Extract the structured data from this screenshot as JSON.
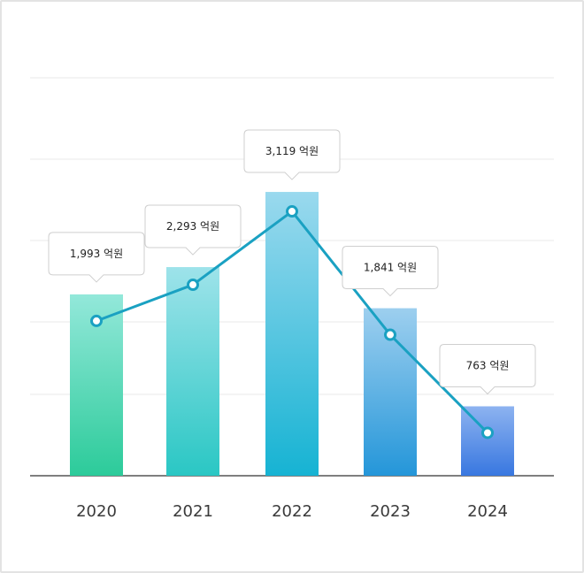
{
  "chart_data": {
    "type": "bar",
    "categories": [
      "2020",
      "2021",
      "2022",
      "2023",
      "2024"
    ],
    "values": [
      1993,
      2293,
      3119,
      1841,
      763
    ],
    "data_labels": [
      "1,993 억원",
      "2,293 억원",
      "3,119 억원",
      "1,841 억원",
      "763 억원"
    ],
    "overlay": "line",
    "grid": true,
    "legend": "none",
    "colors": {
      "bar_gradients": [
        [
          "#93e8da",
          "#2ccb9a"
        ],
        [
          "#9ee3ea",
          "#2ac7c4"
        ],
        [
          "#9ad9ee",
          "#16b3d3"
        ],
        [
          "#9dcfef",
          "#2496d9"
        ],
        [
          "#8db3f0",
          "#3877e0"
        ]
      ],
      "line": "#1aa1c2",
      "grid": "#e8e8e8",
      "baseline": "#555555"
    }
  }
}
